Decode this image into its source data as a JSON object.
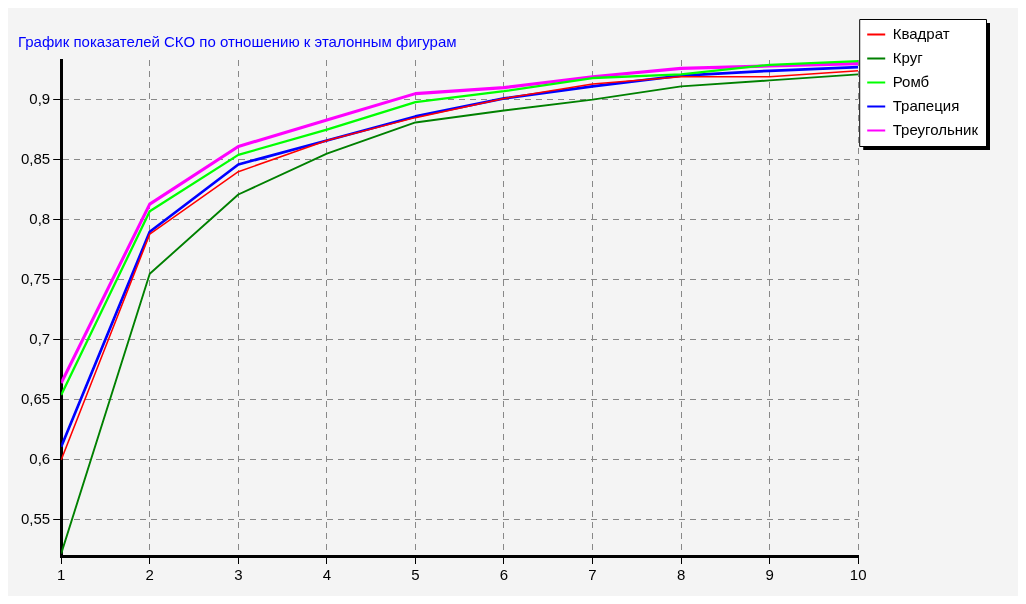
{
  "chart_data": {
    "type": "line",
    "title": "График показателей СКО по отношению к эталонным фигурам",
    "x": [
      1,
      2,
      3,
      4,
      5,
      6,
      7,
      8,
      9,
      10
    ],
    "series": [
      {
        "name": "Квадрат",
        "color": "#ff0000",
        "values": [
          0.6,
          0.788,
          0.84,
          0.866,
          0.885,
          0.901,
          0.913,
          0.919,
          0.919,
          0.924
        ]
      },
      {
        "name": "Круг",
        "color": "#008000",
        "values": [
          0.522,
          0.755,
          0.821,
          0.855,
          0.881,
          0.891,
          0.9,
          0.911,
          0.916,
          0.921
        ]
      },
      {
        "name": "Ромб",
        "color": "#00ff00",
        "values": [
          0.654,
          0.807,
          0.854,
          0.875,
          0.898,
          0.907,
          0.918,
          0.921,
          0.929,
          0.932
        ]
      },
      {
        "name": "Трапеция",
        "color": "#0000ff",
        "values": [
          0.611,
          0.79,
          0.846,
          0.866,
          0.886,
          0.901,
          0.911,
          0.92,
          0.924,
          0.927
        ]
      },
      {
        "name": "Треугольник",
        "color": "#ff00ff",
        "values": [
          0.664,
          0.813,
          0.861,
          0.883,
          0.905,
          0.91,
          0.919,
          0.926,
          0.928,
          0.93
        ]
      }
    ],
    "xlim": [
      1,
      10
    ],
    "xticks": [
      1,
      2,
      3,
      4,
      5,
      6,
      7,
      8,
      9,
      10
    ],
    "ylim": [
      0.52,
      0.933
    ],
    "yticks": [
      {
        "value": 0.55,
        "label": "0,55"
      },
      {
        "value": 0.6,
        "label": "0,6"
      },
      {
        "value": 0.65,
        "label": "0,65"
      },
      {
        "value": 0.7,
        "label": "0,7"
      },
      {
        "value": 0.75,
        "label": "0,75"
      },
      {
        "value": 0.8,
        "label": "0,8"
      },
      {
        "value": 0.85,
        "label": "0,85"
      },
      {
        "value": 0.9,
        "label": "0,9"
      }
    ],
    "grid": true,
    "legend": "top right",
    "marker": "none",
    "line_style": "solid"
  }
}
